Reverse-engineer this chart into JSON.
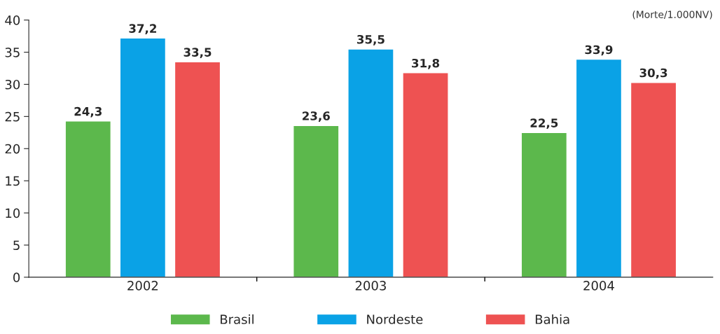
{
  "chart_data": {
    "type": "bar",
    "categories": [
      "2002",
      "2003",
      "2004"
    ],
    "series": [
      {
        "name": "Brasil",
        "color": "#5cb84c",
        "values": [
          24.3,
          23.6,
          22.5
        ],
        "value_labels": [
          "24,3",
          "23,6",
          "22,5"
        ]
      },
      {
        "name": "Nordeste",
        "color": "#0aa2e6",
        "values": [
          37.2,
          35.5,
          33.9
        ],
        "value_labels": [
          "37,2",
          "35,5",
          "33,9"
        ]
      },
      {
        "name": "Bahia",
        "color": "#ee5252",
        "values": [
          33.5,
          31.8,
          30.3
        ],
        "value_labels": [
          "33,5",
          "31,8",
          "30,3"
        ]
      }
    ],
    "ylim": [
      0,
      40
    ],
    "yticks": [
      0,
      5,
      10,
      15,
      20,
      25,
      30,
      35,
      40
    ],
    "annotations": [
      "(Morte/1.000NV)"
    ],
    "legend": "bottom",
    "grid": false
  }
}
